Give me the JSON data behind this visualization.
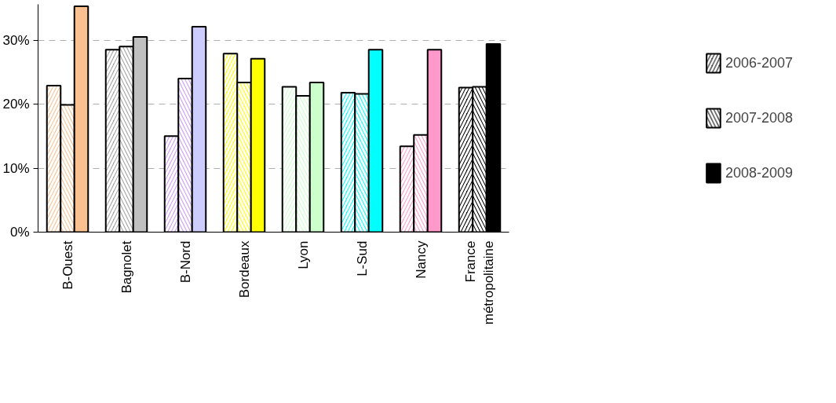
{
  "chart_data": {
    "type": "bar",
    "categories": [
      "B-Ouest",
      "Bagnolet",
      "B-Nord",
      "Bordeaux",
      "Lyon",
      "L-Sud",
      "Nancy",
      "France métropolitaine"
    ],
    "series": [
      {
        "name": "2006-2007",
        "color": "#000000",
        "colors": [
          "#fac090",
          "#a0a0a0",
          "#cc99ff",
          "#ffff00",
          "#ccffcc",
          "#00ffff",
          "#ff99cc",
          "#000000"
        ],
        "values": [
          22.9,
          28.5,
          15.0,
          27.9,
          22.7,
          21.8,
          13.4,
          22.6
        ]
      },
      {
        "name": "2007-2008",
        "color": "#000000",
        "colors": [
          "#fac090",
          "#a0a0a0",
          "#cc99ff",
          "#ffff00",
          "#ccffcc",
          "#00ffff",
          "#ff99cc",
          "#000000"
        ],
        "values": [
          19.9,
          29.0,
          24.0,
          23.4,
          21.3,
          21.6,
          15.2,
          22.7
        ]
      },
      {
        "name": "2008-2009",
        "color": "#000000",
        "colors": [
          "#fac090",
          "#c0c0c0",
          "#ccccff",
          "#ffff00",
          "#ccffcc",
          "#00ffff",
          "#ff99cc",
          "#000000"
        ],
        "values": [
          35.3,
          30.5,
          32.1,
          27.1,
          23.4,
          28.5,
          28.5,
          29.4
        ]
      }
    ],
    "ylim": [
      0,
      35.6
    ],
    "yticks": [
      {
        "value": 0,
        "label": "0%"
      },
      {
        "value": 10,
        "label": "10%"
      },
      {
        "value": 20,
        "label": "20%"
      },
      {
        "value": 30,
        "label": "30%"
      }
    ],
    "grid": "y",
    "legend": "right"
  }
}
